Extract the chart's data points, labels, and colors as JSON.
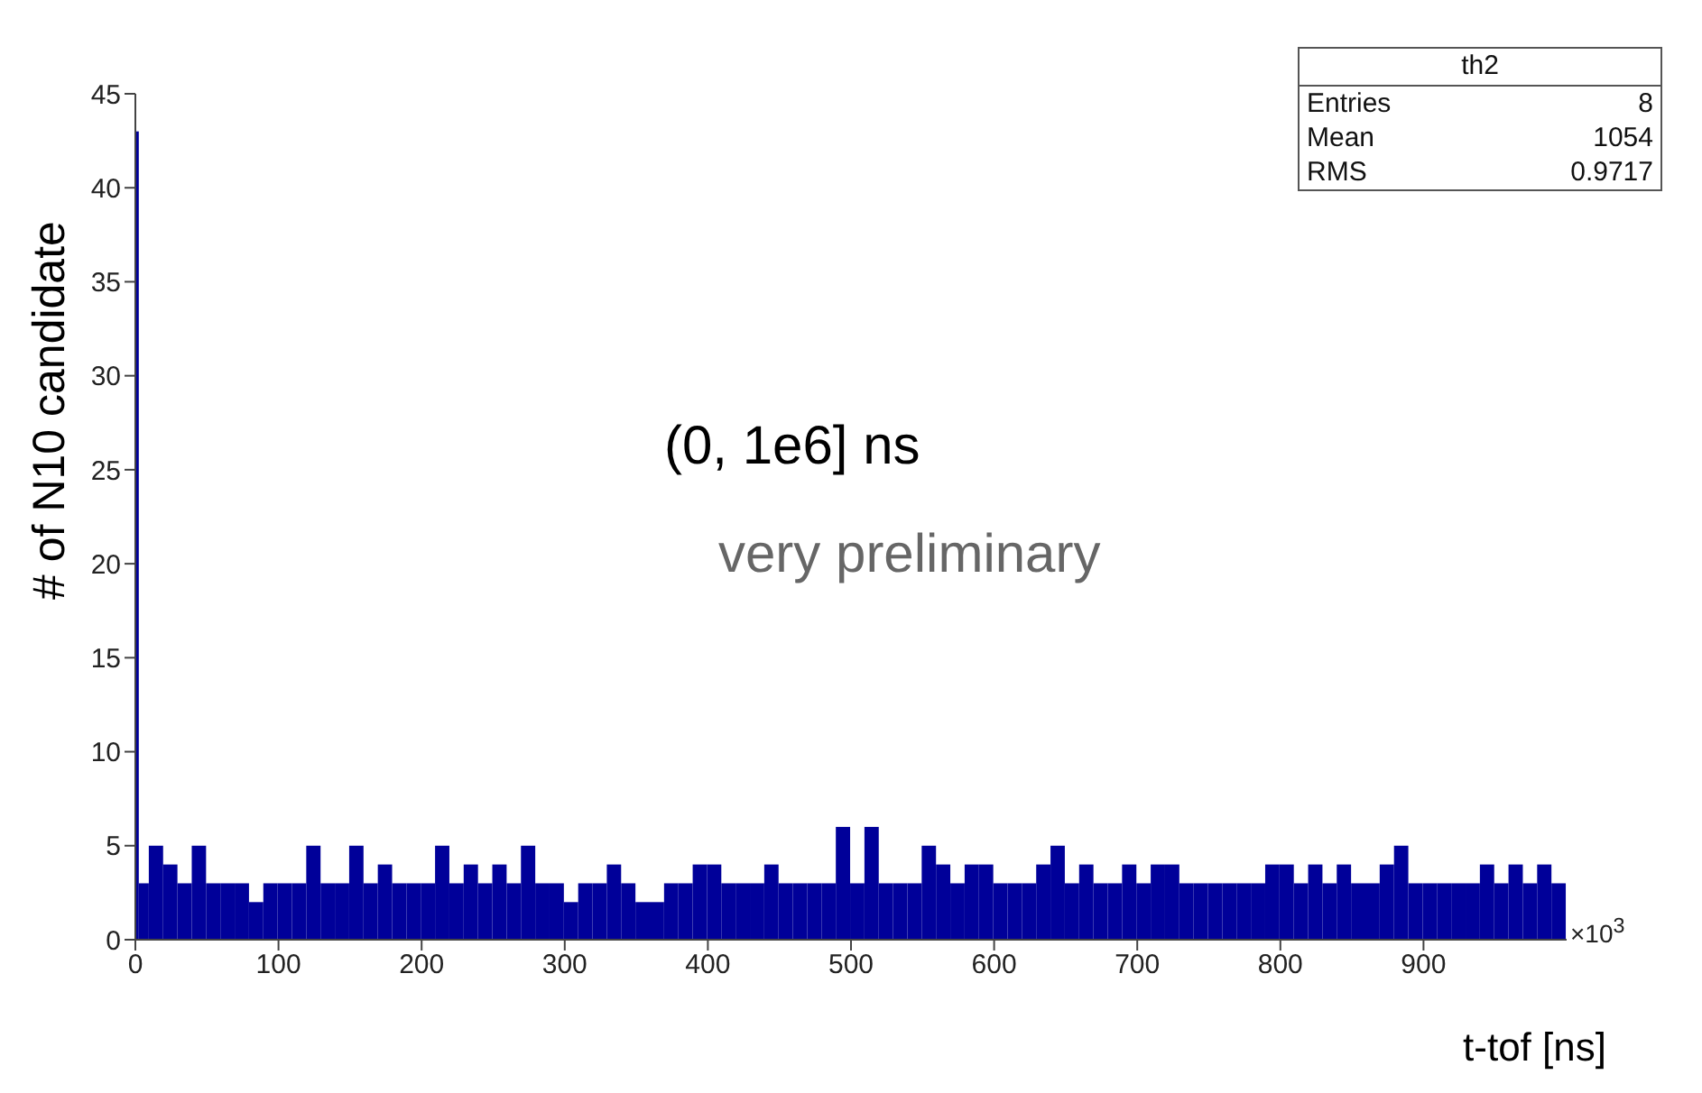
{
  "chart_data": {
    "type": "histogram",
    "xlabel": "t-tof [ns]",
    "ylabel": "# of N10 candidate",
    "bins": [
      0,
      3,
      10,
      20,
      30,
      40,
      50,
      60,
      70,
      80,
      90,
      100,
      110,
      120,
      130,
      140,
      150,
      160,
      170,
      180,
      190,
      200,
      210,
      220,
      230,
      240,
      250,
      260,
      270,
      280,
      290,
      300,
      310,
      320,
      330,
      340,
      350,
      360,
      370,
      380,
      390,
      400,
      410,
      420,
      430,
      440,
      450,
      460,
      470,
      480,
      490,
      500,
      510,
      520,
      530,
      540,
      550,
      560,
      570,
      580,
      590,
      600,
      610,
      620,
      630,
      640,
      650,
      660,
      670,
      680,
      690,
      700,
      710,
      720,
      730,
      740,
      750,
      760,
      770,
      780,
      790,
      800,
      810,
      820,
      830,
      840,
      850,
      860,
      870,
      880,
      890,
      900,
      910,
      920,
      930,
      940,
      950,
      960,
      970,
      980,
      990,
      1000
    ],
    "values": [
      43,
      3,
      5,
      4,
      3,
      5,
      3,
      3,
      3,
      2,
      3,
      3,
      3,
      5,
      3,
      3,
      5,
      3,
      4,
      3,
      3,
      3,
      5,
      3,
      4,
      3,
      4,
      3,
      5,
      3,
      3,
      2,
      3,
      3,
      4,
      3,
      2,
      2,
      3,
      3,
      4,
      4,
      3,
      3,
      3,
      4,
      3,
      3,
      3,
      3,
      6,
      3,
      6,
      3,
      3,
      3,
      5,
      4,
      3,
      4,
      4,
      3,
      3,
      3,
      4,
      5,
      3,
      4,
      3,
      3,
      4,
      3,
      4,
      4,
      3,
      3,
      3,
      3,
      3,
      3,
      4,
      4,
      3,
      4,
      3,
      4,
      3,
      3,
      4,
      5,
      3,
      3,
      3,
      3,
      3,
      4,
      3,
      4,
      3,
      4,
      3
    ],
    "color": "#000099",
    "xlim": [
      0,
      1000
    ],
    "xticks": [
      0,
      100,
      200,
      300,
      400,
      500,
      600,
      700,
      800,
      900
    ],
    "ylim": [
      0,
      45
    ],
    "yticks": [
      0,
      5,
      10,
      15,
      20,
      25,
      30,
      35,
      40,
      45
    ],
    "grid": false,
    "annotations": [
      "(0, 1e6] ns",
      "very preliminary",
      "×10$^{3}$",
      "th2",
      "Entries",
      "8",
      "Mean",
      "1054",
      "RMS",
      "0.9717"
    ]
  }
}
